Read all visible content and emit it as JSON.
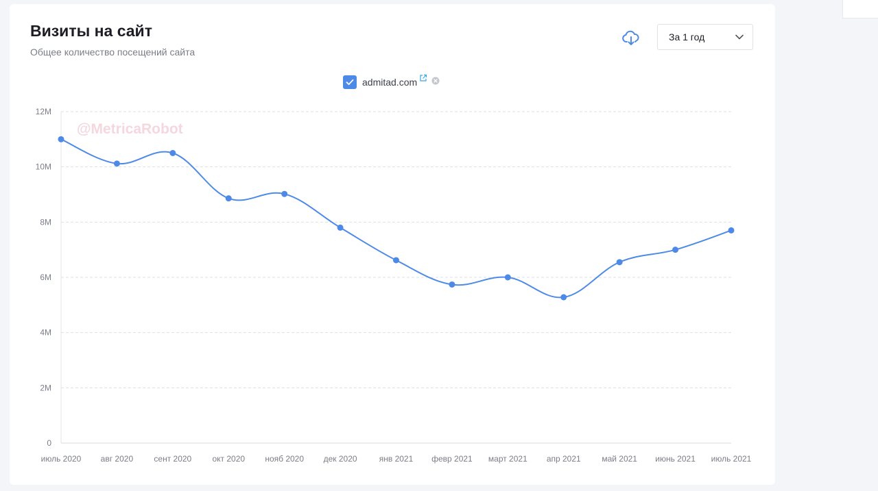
{
  "header": {
    "title": "Визиты на сайт",
    "subtitle": "Общее количество посещений сайта"
  },
  "toolbar": {
    "download_icon": "cloud-download-icon",
    "period_value": "За 1 год"
  },
  "legend": {
    "site": "admitad.com",
    "checked": true
  },
  "watermark": "@MetricaRobot",
  "colors": {
    "accent": "#4d8ae8",
    "series": "#4d8ae8"
  },
  "chart_data": {
    "type": "line",
    "x": [
      "июль 2020",
      "авг 2020",
      "сент 2020",
      "окт 2020",
      "нояб 2020",
      "дек 2020",
      "янв 2021",
      "февр 2021",
      "март 2021",
      "апр 2021",
      "май 2021",
      "июнь 2021",
      "июль 2021"
    ],
    "series": [
      {
        "name": "admitad.com",
        "values": [
          11000000,
          10120000,
          10500000,
          8860000,
          9020000,
          7800000,
          6620000,
          5740000,
          6000000,
          5280000,
          6550000,
          7000000,
          7700000
        ]
      }
    ],
    "yticks": [
      {
        "value": 0,
        "label": "0"
      },
      {
        "value": 2000000,
        "label": "2M"
      },
      {
        "value": 4000000,
        "label": "4M"
      },
      {
        "value": 6000000,
        "label": "6M"
      },
      {
        "value": 8000000,
        "label": "8M"
      },
      {
        "value": 10000000,
        "label": "10M"
      },
      {
        "value": 12000000,
        "label": "12M"
      }
    ],
    "ylim": [
      0,
      12000000
    ],
    "grid": true,
    "smooth": true,
    "legend_position": "top-center"
  }
}
